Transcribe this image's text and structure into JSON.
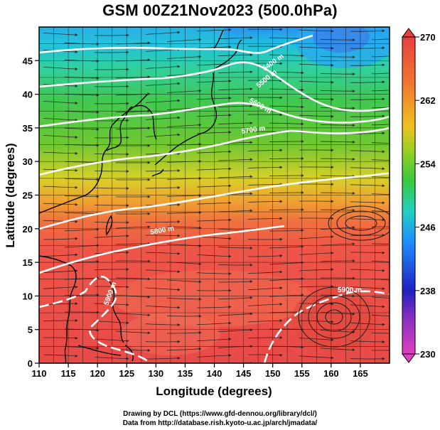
{
  "title": "GSM 00Z21Nov2023 (500.0hPa)",
  "axes": {
    "xlabel": "Longitude (degrees)",
    "ylabel": "Latitude  (degrees)",
    "x_ticks": [
      "110",
      "115",
      "120",
      "125",
      "130",
      "135",
      "140",
      "145",
      "150",
      "155",
      "160",
      "165"
    ],
    "y_ticks": [
      "0",
      "5",
      "10",
      "15",
      "20",
      "25",
      "30",
      "35",
      "40",
      "45"
    ],
    "xlim": [
      110,
      170
    ],
    "ylim": [
      0,
      50
    ]
  },
  "colorbar": {
    "min": 230,
    "max": 270,
    "ticks": [
      "230",
      "238",
      "246",
      "254",
      "262",
      "270"
    ]
  },
  "contours": [
    {
      "label": "5900 m"
    },
    {
      "label": "5800 m"
    },
    {
      "label": "5700 m"
    },
    {
      "label": "5600 m"
    },
    {
      "label": "5500 m"
    },
    {
      "label": "5400 m"
    }
  ],
  "footer": {
    "line1": "Drawing by DCL (https://www.gfd-dennou.org/library/dcl/)",
    "line2": "Data from http://database.rish.kyoto-u.ac.jp/arch/jmadata/"
  },
  "colors": {
    "colorbar_gradient": [
      "#e040c0",
      "#2020c0",
      "#1e8cff",
      "#20d0c0",
      "#3cc83c",
      "#a0d020",
      "#f0c020",
      "#f07830",
      "#e84040"
    ],
    "contour": "#ffffff",
    "stream": "#1a1a1a",
    "coast": "#000000"
  }
}
